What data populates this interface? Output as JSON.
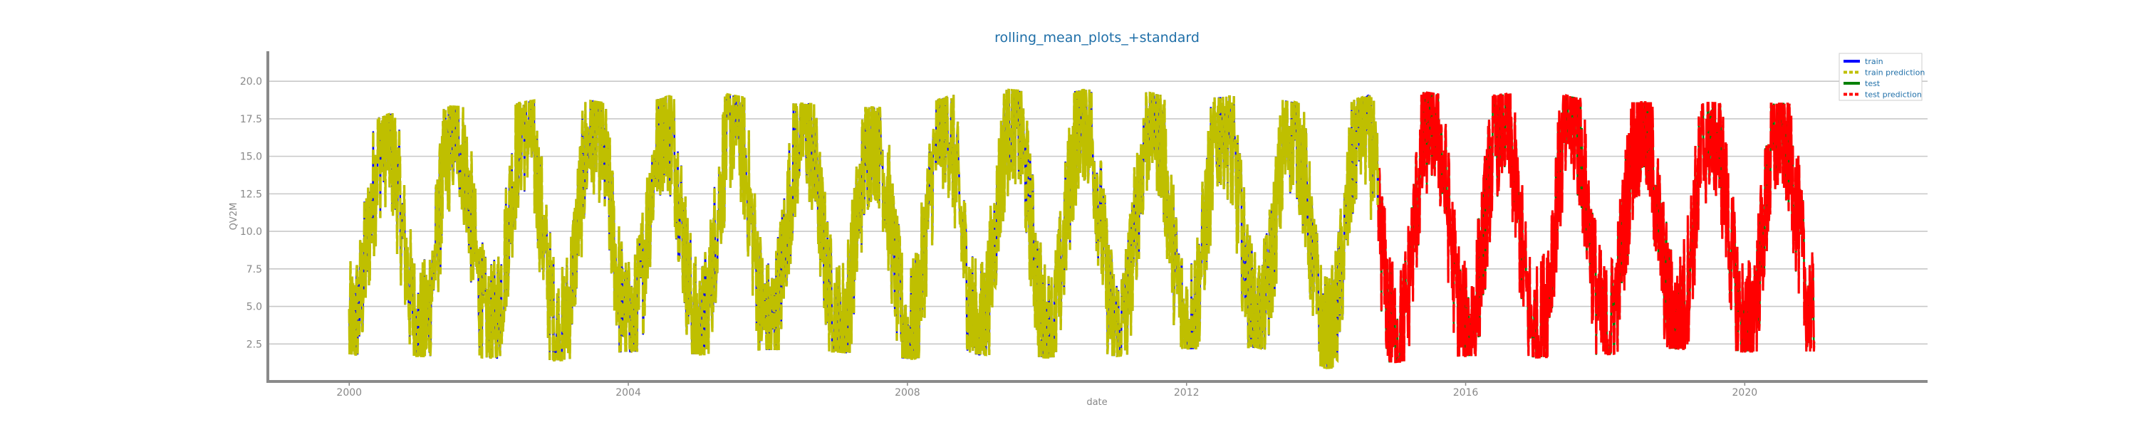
{
  "chart_data": {
    "type": "line",
    "title": "rolling_mean_plots_+standard",
    "xlabel": "date",
    "ylabel": "QV2M",
    "xlim": [
      "1998-11-01",
      "2022-08-15"
    ],
    "ylim": [
      0,
      22
    ],
    "x_ticks": [
      "2000",
      "2004",
      "2008",
      "2012",
      "2016",
      "2020"
    ],
    "y_ticks": [
      "2.5",
      "5.0",
      "7.5",
      "10.0",
      "12.5",
      "15.0",
      "17.5",
      "20.0"
    ],
    "grid": "horizontal",
    "legend_position": "top-right",
    "split_date": "2014-09-30",
    "series": [
      {
        "name": "train",
        "color": "#0000ff",
        "x_range": [
          "2000-01-01",
          "2014-09-30"
        ]
      },
      {
        "name": "train prediction",
        "color": "#bfbf00",
        "x_range": [
          "2000-01-01",
          "2014-09-30"
        ]
      },
      {
        "name": "test",
        "color": "#008000",
        "x_range": [
          "2014-09-30",
          "2020-12-31"
        ]
      },
      {
        "name": "test prediction",
        "color": "#ff0000",
        "x_range": [
          "2014-09-30",
          "2020-12-31"
        ]
      }
    ],
    "annual_envelope": {
      "x": [
        "2000",
        "2001",
        "2002",
        "2003",
        "2004",
        "2005",
        "2006",
        "2007",
        "2008",
        "2009",
        "2010",
        "2011",
        "2012",
        "2013",
        "2014",
        "2015",
        "2016",
        "2017",
        "2018",
        "2019",
        "2020"
      ],
      "summer_peak": [
        17.0,
        18.4,
        18.2,
        19.0,
        18.3,
        19.5,
        18.6,
        18.4,
        18.1,
        19.6,
        19.2,
        19.6,
        18.8,
        19.1,
        18.2,
        19.6,
        18.8,
        19.4,
        18.6,
        18.6,
        18.5
      ],
      "winter_low": [
        1.8,
        1.7,
        1.6,
        1.4,
        2.0,
        1.8,
        2.1,
        2.0,
        1.5,
        1.8,
        1.6,
        1.7,
        2.2,
        2.3,
        0.9,
        1.3,
        1.7,
        1.6,
        1.8,
        2.2,
        2.0
      ]
    }
  }
}
